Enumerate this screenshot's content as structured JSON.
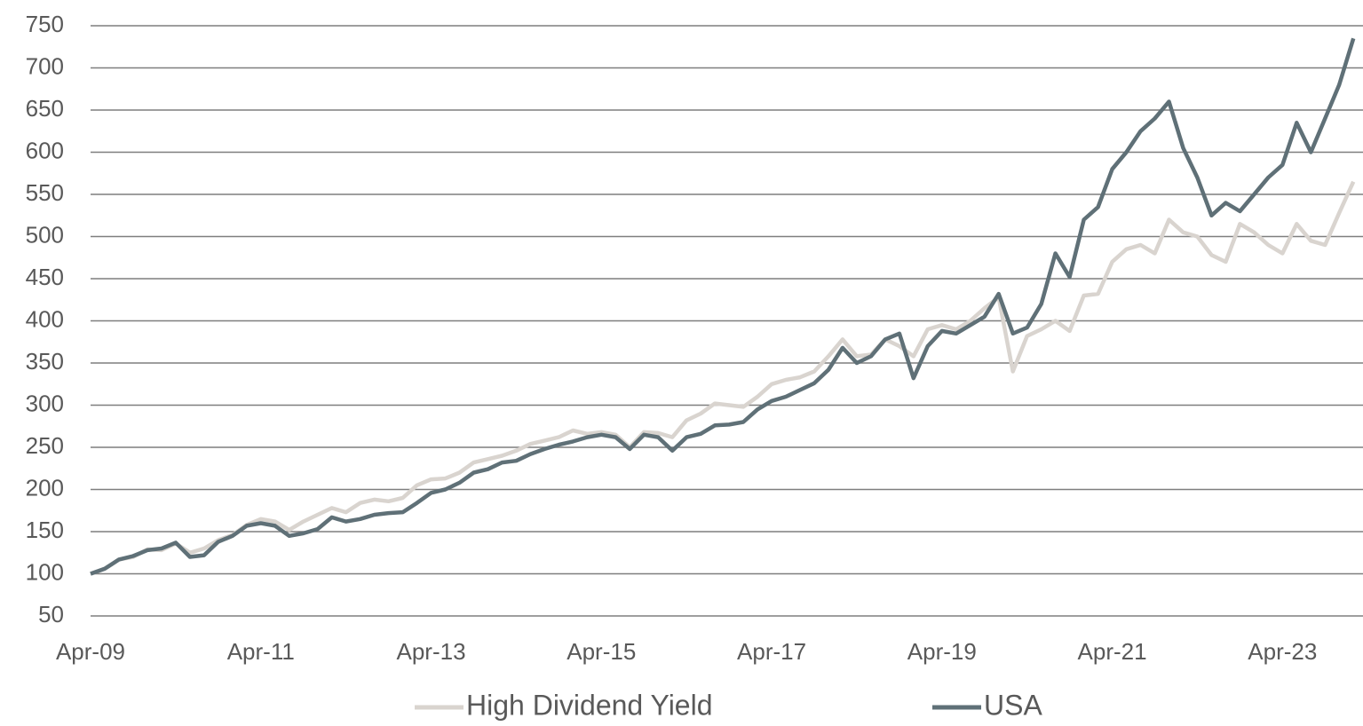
{
  "chart_data": {
    "type": "line",
    "categories": [
      "Apr-09",
      null,
      null,
      null,
      null,
      null,
      null,
      null,
      null,
      null,
      null,
      null,
      "Apr-11",
      null,
      null,
      null,
      null,
      null,
      null,
      null,
      null,
      null,
      null,
      null,
      "Apr-13",
      null,
      null,
      null,
      null,
      null,
      null,
      null,
      null,
      null,
      null,
      null,
      "Apr-15",
      null,
      null,
      null,
      null,
      null,
      null,
      null,
      null,
      null,
      null,
      null,
      "Apr-17",
      null,
      null,
      null,
      null,
      null,
      null,
      null,
      null,
      null,
      null,
      null,
      "Apr-19",
      null,
      null,
      null,
      null,
      null,
      null,
      null,
      null,
      null,
      null,
      null,
      "Apr-21",
      null,
      null,
      null,
      null,
      null,
      null,
      null,
      null,
      null,
      null,
      null,
      "Apr-23",
      null,
      null,
      null,
      null,
      null
    ],
    "series": [
      {
        "name": "High Dividend Yield",
        "color": "#d9d4cf",
        "values": [
          100,
          106,
          117,
          120,
          129,
          128,
          136,
          125,
          130,
          140,
          146,
          158,
          165,
          162,
          152,
          162,
          170,
          178,
          173,
          184,
          188,
          186,
          190,
          205,
          212,
          213,
          220,
          232,
          236,
          240,
          246,
          254,
          258,
          262,
          270,
          266,
          268,
          265,
          250,
          268,
          267,
          262,
          282,
          290,
          302,
          300,
          298,
          310,
          325,
          330,
          333,
          340,
          358,
          378,
          358,
          360,
          378,
          370,
          358,
          390,
          395,
          390,
          400,
          415,
          428,
          340,
          382,
          390,
          400,
          388,
          430,
          432,
          470,
          485,
          490,
          480,
          520,
          505,
          500,
          478,
          470,
          515,
          505,
          490,
          480,
          515,
          495,
          490,
          528,
          565
        ]
      },
      {
        "name": "USA",
        "color": "#5f7077",
        "values": [
          100,
          106,
          117,
          121,
          128,
          130,
          137,
          120,
          122,
          138,
          145,
          157,
          160,
          157,
          145,
          148,
          153,
          167,
          162,
          165,
          170,
          172,
          173,
          184,
          196,
          200,
          208,
          220,
          224,
          232,
          234,
          242,
          248,
          253,
          257,
          262,
          265,
          262,
          248,
          265,
          262,
          246,
          262,
          266,
          276,
          277,
          280,
          295,
          305,
          310,
          318,
          326,
          342,
          368,
          350,
          358,
          378,
          385,
          332,
          370,
          388,
          385,
          395,
          405,
          432,
          385,
          392,
          420,
          480,
          452,
          520,
          535,
          580,
          600,
          625,
          640,
          660,
          605,
          570,
          525,
          540,
          530,
          550,
          570,
          585,
          635,
          600,
          640,
          680,
          735
        ]
      }
    ],
    "ylim": [
      50,
      750
    ],
    "yticks": [
      50,
      100,
      150,
      200,
      250,
      300,
      350,
      400,
      450,
      500,
      550,
      600,
      650,
      700,
      750
    ],
    "grid": true,
    "legend": "bottom"
  }
}
